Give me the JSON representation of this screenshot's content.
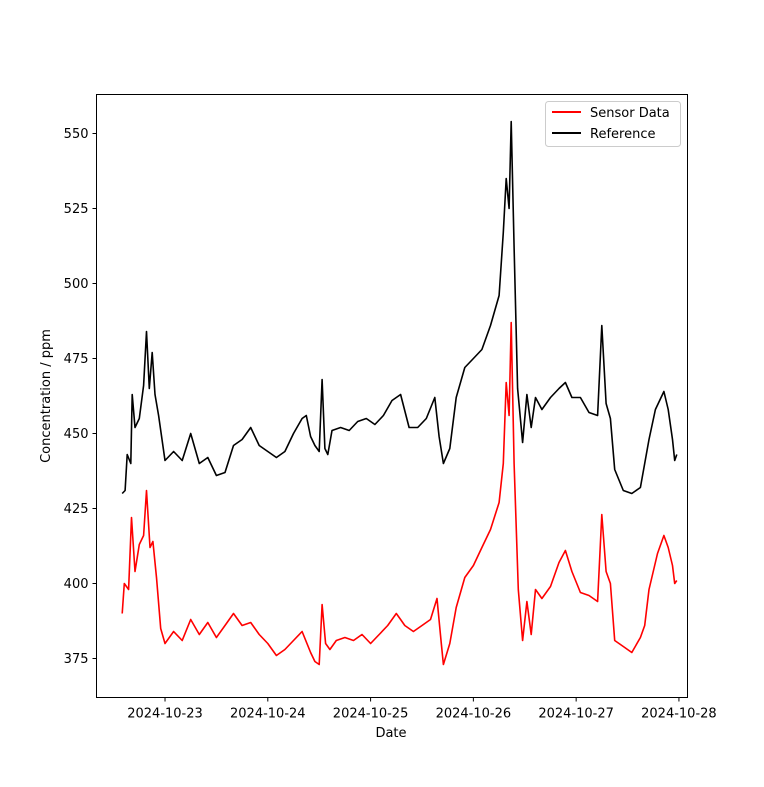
{
  "chart_data": {
    "type": "line",
    "xlabel": "Date",
    "ylabel": "Concentration / ppm",
    "title": "",
    "xlim": [
      "2024-10-22 08:00",
      "2024-10-28 02:00"
    ],
    "ylim": [
      362,
      563
    ],
    "x_ticks": [
      "2024-10-23",
      "2024-10-24",
      "2024-10-25",
      "2024-10-26",
      "2024-10-27",
      "2024-10-28"
    ],
    "y_ticks": [
      375,
      400,
      425,
      450,
      475,
      500,
      525,
      550
    ],
    "legend_position": "top-right",
    "grid": false,
    "series": [
      {
        "name": "Sensor Data",
        "color": "#ff0000",
        "points": [
          [
            "2024-10-22 14:00",
            390
          ],
          [
            "2024-10-22 14:30",
            400
          ],
          [
            "2024-10-22 15:30",
            398
          ],
          [
            "2024-10-22 16:10",
            422
          ],
          [
            "2024-10-22 17:00",
            404
          ],
          [
            "2024-10-22 18:00",
            413
          ],
          [
            "2024-10-22 19:00",
            416
          ],
          [
            "2024-10-22 19:40",
            431
          ],
          [
            "2024-10-22 20:30",
            412
          ],
          [
            "2024-10-22 21:10",
            414
          ],
          [
            "2024-10-22 22:00",
            402
          ],
          [
            "2024-10-22 23:00",
            385
          ],
          [
            "2024-10-23 00:00",
            380
          ],
          [
            "2024-10-23 02:00",
            384
          ],
          [
            "2024-10-23 04:00",
            381
          ],
          [
            "2024-10-23 06:00",
            388
          ],
          [
            "2024-10-23 08:00",
            383
          ],
          [
            "2024-10-23 10:00",
            387
          ],
          [
            "2024-10-23 12:00",
            382
          ],
          [
            "2024-10-23 14:00",
            386
          ],
          [
            "2024-10-23 16:00",
            390
          ],
          [
            "2024-10-23 18:00",
            386
          ],
          [
            "2024-10-23 20:00",
            387
          ],
          [
            "2024-10-23 22:00",
            383
          ],
          [
            "2024-10-24 00:00",
            380
          ],
          [
            "2024-10-24 02:00",
            376
          ],
          [
            "2024-10-24 04:00",
            378
          ],
          [
            "2024-10-24 06:00",
            381
          ],
          [
            "2024-10-24 08:00",
            384
          ],
          [
            "2024-10-24 10:00",
            377
          ],
          [
            "2024-10-24 11:00",
            374
          ],
          [
            "2024-10-24 12:00",
            373
          ],
          [
            "2024-10-24 12:40",
            393
          ],
          [
            "2024-10-24 13:30",
            380
          ],
          [
            "2024-10-24 14:30",
            378
          ],
          [
            "2024-10-24 16:00",
            381
          ],
          [
            "2024-10-24 18:00",
            382
          ],
          [
            "2024-10-24 20:00",
            381
          ],
          [
            "2024-10-24 22:00",
            383
          ],
          [
            "2024-10-25 00:00",
            380
          ],
          [
            "2024-10-25 02:00",
            383
          ],
          [
            "2024-10-25 04:00",
            386
          ],
          [
            "2024-10-25 06:00",
            390
          ],
          [
            "2024-10-25 07:00",
            388
          ],
          [
            "2024-10-25 08:00",
            386
          ],
          [
            "2024-10-25 10:00",
            384
          ],
          [
            "2024-10-25 12:00",
            386
          ],
          [
            "2024-10-25 14:00",
            388
          ],
          [
            "2024-10-25 15:30",
            395
          ],
          [
            "2024-10-25 16:30",
            380
          ],
          [
            "2024-10-25 17:00",
            373
          ],
          [
            "2024-10-25 18:30",
            380
          ],
          [
            "2024-10-25 20:00",
            392
          ],
          [
            "2024-10-25 22:00",
            402
          ],
          [
            "2024-10-26 00:00",
            406
          ],
          [
            "2024-10-26 02:00",
            412
          ],
          [
            "2024-10-26 04:00",
            418
          ],
          [
            "2024-10-26 06:00",
            427
          ],
          [
            "2024-10-26 07:00",
            440
          ],
          [
            "2024-10-26 07:40",
            467
          ],
          [
            "2024-10-26 08:20",
            456
          ],
          [
            "2024-10-26 08:50",
            487
          ],
          [
            "2024-10-26 09:30",
            440
          ],
          [
            "2024-10-26 10:30",
            398
          ],
          [
            "2024-10-26 11:30",
            381
          ],
          [
            "2024-10-26 12:30",
            394
          ],
          [
            "2024-10-26 13:30",
            383
          ],
          [
            "2024-10-26 14:30",
            398
          ],
          [
            "2024-10-26 16:00",
            395
          ],
          [
            "2024-10-26 18:00",
            399
          ],
          [
            "2024-10-26 20:00",
            407
          ],
          [
            "2024-10-26 21:30",
            411
          ],
          [
            "2024-10-26 23:00",
            404
          ],
          [
            "2024-10-27 01:00",
            397
          ],
          [
            "2024-10-27 03:00",
            396
          ],
          [
            "2024-10-27 05:00",
            394
          ],
          [
            "2024-10-27 06:00",
            423
          ],
          [
            "2024-10-27 07:00",
            404
          ],
          [
            "2024-10-27 08:00",
            400
          ],
          [
            "2024-10-27 09:00",
            381
          ],
          [
            "2024-10-27 11:00",
            379
          ],
          [
            "2024-10-27 13:00",
            377
          ],
          [
            "2024-10-27 15:00",
            382
          ],
          [
            "2024-10-27 16:00",
            386
          ],
          [
            "2024-10-27 17:00",
            398
          ],
          [
            "2024-10-27 19:00",
            410
          ],
          [
            "2024-10-27 20:30",
            416
          ],
          [
            "2024-10-27 21:30",
            412
          ],
          [
            "2024-10-27 22:30",
            406
          ],
          [
            "2024-10-27 23:00",
            400
          ],
          [
            "2024-10-27 23:30",
            401
          ]
        ]
      },
      {
        "name": "Reference",
        "color": "#000000",
        "points": [
          [
            "2024-10-22 14:00",
            430
          ],
          [
            "2024-10-22 14:40",
            431
          ],
          [
            "2024-10-22 15:10",
            443
          ],
          [
            "2024-10-22 16:00",
            440
          ],
          [
            "2024-10-22 16:20",
            463
          ],
          [
            "2024-10-22 17:00",
            452
          ],
          [
            "2024-10-22 18:00",
            455
          ],
          [
            "2024-10-22 19:00",
            466
          ],
          [
            "2024-10-22 19:40",
            484
          ],
          [
            "2024-10-22 20:20",
            465
          ],
          [
            "2024-10-22 21:00",
            477
          ],
          [
            "2024-10-22 21:40",
            463
          ],
          [
            "2024-10-22 22:30",
            456
          ],
          [
            "2024-10-23 00:00",
            441
          ],
          [
            "2024-10-23 02:00",
            444
          ],
          [
            "2024-10-23 04:00",
            441
          ],
          [
            "2024-10-23 06:00",
            450
          ],
          [
            "2024-10-23 08:00",
            440
          ],
          [
            "2024-10-23 10:00",
            442
          ],
          [
            "2024-10-23 12:00",
            436
          ],
          [
            "2024-10-23 14:00",
            437
          ],
          [
            "2024-10-23 16:00",
            446
          ],
          [
            "2024-10-23 18:00",
            448
          ],
          [
            "2024-10-23 20:00",
            452
          ],
          [
            "2024-10-23 22:00",
            446
          ],
          [
            "2024-10-24 00:00",
            444
          ],
          [
            "2024-10-24 02:00",
            442
          ],
          [
            "2024-10-24 04:00",
            444
          ],
          [
            "2024-10-24 06:00",
            450
          ],
          [
            "2024-10-24 08:00",
            455
          ],
          [
            "2024-10-24 09:00",
            456
          ],
          [
            "2024-10-24 10:00",
            449
          ],
          [
            "2024-10-24 11:00",
            446
          ],
          [
            "2024-10-24 12:00",
            444
          ],
          [
            "2024-10-24 12:40",
            468
          ],
          [
            "2024-10-24 13:20",
            445
          ],
          [
            "2024-10-24 14:00",
            443
          ],
          [
            "2024-10-24 15:00",
            451
          ],
          [
            "2024-10-24 17:00",
            452
          ],
          [
            "2024-10-24 19:00",
            451
          ],
          [
            "2024-10-24 21:00",
            454
          ],
          [
            "2024-10-24 23:00",
            455
          ],
          [
            "2024-10-25 01:00",
            453
          ],
          [
            "2024-10-25 03:00",
            456
          ],
          [
            "2024-10-25 05:00",
            461
          ],
          [
            "2024-10-25 07:00",
            463
          ],
          [
            "2024-10-25 09:00",
            452
          ],
          [
            "2024-10-25 11:00",
            452
          ],
          [
            "2024-10-25 13:00",
            455
          ],
          [
            "2024-10-25 15:00",
            462
          ],
          [
            "2024-10-25 16:00",
            449
          ],
          [
            "2024-10-25 17:00",
            440
          ],
          [
            "2024-10-25 18:30",
            445
          ],
          [
            "2024-10-25 20:00",
            462
          ],
          [
            "2024-10-25 22:00",
            472
          ],
          [
            "2024-10-26 00:00",
            475
          ],
          [
            "2024-10-26 02:00",
            478
          ],
          [
            "2024-10-26 04:00",
            486
          ],
          [
            "2024-10-26 06:00",
            496
          ],
          [
            "2024-10-26 07:00",
            517
          ],
          [
            "2024-10-26 07:40",
            535
          ],
          [
            "2024-10-26 08:20",
            525
          ],
          [
            "2024-10-26 08:50",
            554
          ],
          [
            "2024-10-26 09:30",
            512
          ],
          [
            "2024-10-26 10:20",
            465
          ],
          [
            "2024-10-26 11:30",
            447
          ],
          [
            "2024-10-26 12:30",
            463
          ],
          [
            "2024-10-26 13:30",
            452
          ],
          [
            "2024-10-26 14:30",
            462
          ],
          [
            "2024-10-26 16:00",
            458
          ],
          [
            "2024-10-26 18:00",
            462
          ],
          [
            "2024-10-26 20:00",
            465
          ],
          [
            "2024-10-26 21:30",
            467
          ],
          [
            "2024-10-26 23:00",
            462
          ],
          [
            "2024-10-27 01:00",
            462
          ],
          [
            "2024-10-27 03:00",
            457
          ],
          [
            "2024-10-27 05:00",
            456
          ],
          [
            "2024-10-27 06:00",
            486
          ],
          [
            "2024-10-27 07:00",
            460
          ],
          [
            "2024-10-27 08:00",
            455
          ],
          [
            "2024-10-27 09:00",
            438
          ],
          [
            "2024-10-27 11:00",
            431
          ],
          [
            "2024-10-27 13:00",
            430
          ],
          [
            "2024-10-27 15:00",
            432
          ],
          [
            "2024-10-27 16:00",
            440
          ],
          [
            "2024-10-27 17:00",
            448
          ],
          [
            "2024-10-27 18:30",
            458
          ],
          [
            "2024-10-27 20:30",
            464
          ],
          [
            "2024-10-27 21:30",
            458
          ],
          [
            "2024-10-27 22:30",
            448
          ],
          [
            "2024-10-27 23:00",
            441
          ],
          [
            "2024-10-27 23:30",
            443
          ]
        ]
      }
    ]
  }
}
